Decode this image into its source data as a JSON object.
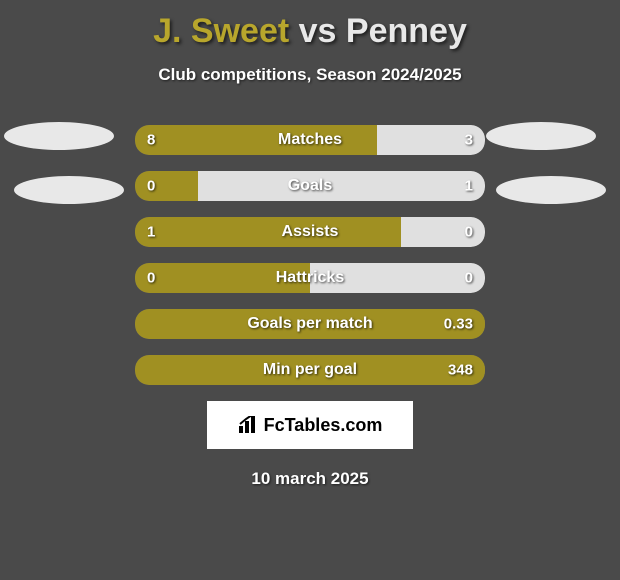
{
  "title": {
    "player1": "J. Sweet",
    "vs": "vs",
    "player2": "Penney"
  },
  "subtitle": "Club competitions, Season 2024/2025",
  "colors": {
    "player1": "#b8a62c",
    "player2": "#e8e8e8",
    "fill1": "#a09022",
    "fill2": "#e0e0e0",
    "bg": "#4a4a4a"
  },
  "rows": [
    {
      "label": "Matches",
      "left_val": "8",
      "right_val": "3",
      "left_pct": 69,
      "right_pct": 31
    },
    {
      "label": "Goals",
      "left_val": "0",
      "right_val": "1",
      "left_pct": 18,
      "right_pct": 82
    },
    {
      "label": "Assists",
      "left_val": "1",
      "right_val": "0",
      "left_pct": 76,
      "right_pct": 24
    },
    {
      "label": "Hattricks",
      "left_val": "0",
      "right_val": "0",
      "left_pct": 50,
      "right_pct": 50
    },
    {
      "label": "Goals per match",
      "left_val": "",
      "right_val": "0.33",
      "left_pct": 100,
      "right_pct": 0
    },
    {
      "label": "Min per goal",
      "left_val": "",
      "right_val": "348",
      "left_pct": 100,
      "right_pct": 0
    }
  ],
  "logo": "FcTables.com",
  "date": "10 march 2025"
}
